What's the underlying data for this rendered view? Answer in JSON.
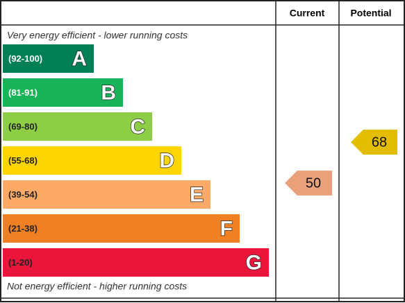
{
  "header": {
    "current": "Current",
    "potential": "Potential"
  },
  "top_note": "Very energy efficient - lower running costs",
  "bands": [
    {
      "range": "(92-100)",
      "letter": "A",
      "color": "#008054"
    },
    {
      "range": "(81-91)",
      "letter": "B",
      "color": "#19b459"
    },
    {
      "range": "(69-80)",
      "letter": "C",
      "color": "#8dce46"
    },
    {
      "range": "(55-68)",
      "letter": "D",
      "color": "#ffd500"
    },
    {
      "range": "(39-54)",
      "letter": "E",
      "color": "#fcaa65"
    },
    {
      "range": "(21-38)",
      "letter": "F",
      "color": "#ef8023"
    },
    {
      "range": "(1-20)",
      "letter": "G",
      "color": "#e9153b"
    }
  ],
  "bottom_note": "Not energy efficient - higher running costs",
  "current": {
    "value": 50,
    "color": "#e9a27c"
  },
  "potential": {
    "value": 68,
    "color": "#e3bd00"
  }
}
